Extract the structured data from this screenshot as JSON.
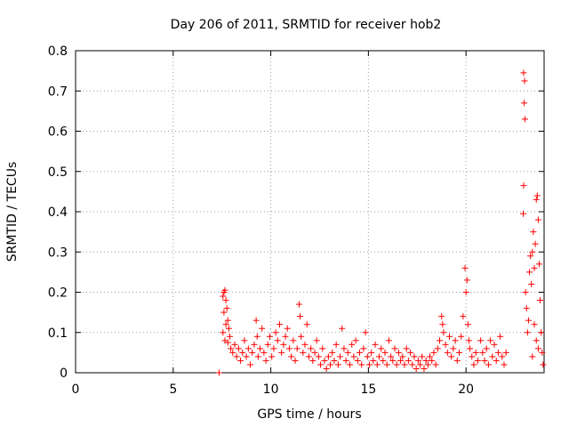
{
  "chart_data": {
    "type": "scatter",
    "title": "Day 206 of 2011, SRMTID for receiver hob2",
    "xlabel": "GPS time / hours",
    "ylabel": "SRMTID / TECUs",
    "xlim": [
      0,
      24
    ],
    "ylim": [
      0,
      0.8
    ],
    "xticks": [
      0,
      5,
      10,
      15,
      20
    ],
    "xtick_labels": [
      "0",
      "5",
      "10",
      "15",
      "20"
    ],
    "yticks": [
      0,
      0.1,
      0.2,
      0.3,
      0.4,
      0.5,
      0.6,
      0.7,
      0.8
    ],
    "ytick_labels": [
      "0",
      "0.1",
      "0.2",
      "0.3",
      "0.4",
      "0.5",
      "0.6",
      "0.7",
      "0.8"
    ],
    "grid": true,
    "marker": "+",
    "color": "#ff0000",
    "series": [
      {
        "name": "SRMTID",
        "points": [
          [
            7.35,
            0.0
          ],
          [
            7.55,
            0.19
          ],
          [
            7.6,
            0.2
          ],
          [
            7.65,
            0.205
          ],
          [
            7.7,
            0.18
          ],
          [
            7.75,
            0.16
          ],
          [
            7.8,
            0.13
          ],
          [
            7.85,
            0.11
          ],
          [
            7.9,
            0.09
          ],
          [
            7.6,
            0.15
          ],
          [
            7.7,
            0.12
          ],
          [
            7.55,
            0.1
          ],
          [
            7.65,
            0.08
          ],
          [
            7.8,
            0.075
          ],
          [
            7.95,
            0.06
          ],
          [
            8.05,
            0.05
          ],
          [
            8.15,
            0.07
          ],
          [
            8.25,
            0.04
          ],
          [
            8.35,
            0.06
          ],
          [
            8.45,
            0.03
          ],
          [
            8.55,
            0.05
          ],
          [
            8.65,
            0.08
          ],
          [
            8.75,
            0.04
          ],
          [
            8.85,
            0.06
          ],
          [
            8.95,
            0.02
          ],
          [
            9.05,
            0.05
          ],
          [
            9.15,
            0.07
          ],
          [
            9.25,
            0.13
          ],
          [
            9.3,
            0.09
          ],
          [
            9.35,
            0.04
          ],
          [
            9.45,
            0.06
          ],
          [
            9.55,
            0.11
          ],
          [
            9.65,
            0.05
          ],
          [
            9.75,
            0.03
          ],
          [
            9.85,
            0.07
          ],
          [
            9.95,
            0.09
          ],
          [
            10.05,
            0.04
          ],
          [
            10.15,
            0.06
          ],
          [
            10.25,
            0.1
          ],
          [
            10.35,
            0.08
          ],
          [
            10.45,
            0.12
          ],
          [
            10.55,
            0.05
          ],
          [
            10.65,
            0.07
          ],
          [
            10.75,
            0.09
          ],
          [
            10.85,
            0.11
          ],
          [
            10.95,
            0.06
          ],
          [
            11.05,
            0.04
          ],
          [
            11.15,
            0.08
          ],
          [
            11.25,
            0.03
          ],
          [
            11.35,
            0.06
          ],
          [
            11.45,
            0.17
          ],
          [
            11.5,
            0.14
          ],
          [
            11.55,
            0.09
          ],
          [
            11.65,
            0.05
          ],
          [
            11.75,
            0.07
          ],
          [
            11.85,
            0.12
          ],
          [
            11.95,
            0.04
          ],
          [
            12.05,
            0.06
          ],
          [
            12.15,
            0.03
          ],
          [
            12.25,
            0.05
          ],
          [
            12.35,
            0.08
          ],
          [
            12.45,
            0.04
          ],
          [
            12.55,
            0.02
          ],
          [
            12.65,
            0.06
          ],
          [
            12.75,
            0.03
          ],
          [
            12.85,
            0.01
          ],
          [
            12.95,
            0.04
          ],
          [
            13.05,
            0.02
          ],
          [
            13.15,
            0.05
          ],
          [
            13.25,
            0.03
          ],
          [
            13.35,
            0.07
          ],
          [
            13.45,
            0.02
          ],
          [
            13.55,
            0.04
          ],
          [
            13.65,
            0.11
          ],
          [
            13.75,
            0.06
          ],
          [
            13.85,
            0.03
          ],
          [
            13.95,
            0.05
          ],
          [
            14.05,
            0.02
          ],
          [
            14.15,
            0.07
          ],
          [
            14.25,
            0.04
          ],
          [
            14.35,
            0.08
          ],
          [
            14.45,
            0.03
          ],
          [
            14.55,
            0.05
          ],
          [
            14.65,
            0.02
          ],
          [
            14.75,
            0.06
          ],
          [
            14.85,
            0.1
          ],
          [
            14.95,
            0.04
          ],
          [
            15.05,
            0.02
          ],
          [
            15.15,
            0.05
          ],
          [
            15.25,
            0.03
          ],
          [
            15.35,
            0.07
          ],
          [
            15.45,
            0.02
          ],
          [
            15.55,
            0.04
          ],
          [
            15.65,
            0.06
          ],
          [
            15.75,
            0.03
          ],
          [
            15.85,
            0.05
          ],
          [
            15.95,
            0.02
          ],
          [
            16.05,
            0.08
          ],
          [
            16.15,
            0.04
          ],
          [
            16.25,
            0.03
          ],
          [
            16.35,
            0.06
          ],
          [
            16.45,
            0.02
          ],
          [
            16.55,
            0.05
          ],
          [
            16.65,
            0.03
          ],
          [
            16.75,
            0.04
          ],
          [
            16.85,
            0.02
          ],
          [
            16.95,
            0.06
          ],
          [
            17.05,
            0.03
          ],
          [
            17.15,
            0.05
          ],
          [
            17.25,
            0.02
          ],
          [
            17.35,
            0.04
          ],
          [
            17.45,
            0.01
          ],
          [
            17.55,
            0.03
          ],
          [
            17.65,
            0.02
          ],
          [
            17.75,
            0.04
          ],
          [
            17.85,
            0.01
          ],
          [
            17.95,
            0.03
          ],
          [
            18.05,
            0.02
          ],
          [
            18.15,
            0.04
          ],
          [
            18.25,
            0.03
          ],
          [
            18.35,
            0.05
          ],
          [
            18.45,
            0.02
          ],
          [
            18.55,
            0.06
          ],
          [
            18.65,
            0.08
          ],
          [
            18.75,
            0.14
          ],
          [
            18.8,
            0.12
          ],
          [
            18.85,
            0.1
          ],
          [
            18.95,
            0.07
          ],
          [
            19.05,
            0.05
          ],
          [
            19.15,
            0.09
          ],
          [
            19.25,
            0.04
          ],
          [
            19.35,
            0.06
          ],
          [
            19.45,
            0.08
          ],
          [
            19.55,
            0.03
          ],
          [
            19.65,
            0.05
          ],
          [
            19.75,
            0.09
          ],
          [
            19.85,
            0.14
          ],
          [
            19.95,
            0.26
          ],
          [
            20.0,
            0.2
          ],
          [
            20.05,
            0.23
          ],
          [
            20.1,
            0.12
          ],
          [
            20.15,
            0.08
          ],
          [
            20.2,
            0.06
          ],
          [
            20.3,
            0.04
          ],
          [
            20.4,
            0.02
          ],
          [
            20.5,
            0.05
          ],
          [
            20.6,
            0.03
          ],
          [
            20.75,
            0.08
          ],
          [
            20.85,
            0.05
          ],
          [
            20.95,
            0.03
          ],
          [
            21.05,
            0.06
          ],
          [
            21.15,
            0.02
          ],
          [
            21.25,
            0.08
          ],
          [
            21.35,
            0.04
          ],
          [
            21.45,
            0.07
          ],
          [
            21.55,
            0.03
          ],
          [
            21.65,
            0.05
          ],
          [
            21.75,
            0.09
          ],
          [
            21.85,
            0.04
          ],
          [
            21.95,
            0.02
          ],
          [
            22.05,
            0.05
          ],
          [
            22.95,
            0.745
          ],
          [
            23.0,
            0.725
          ],
          [
            22.98,
            0.67
          ],
          [
            23.02,
            0.63
          ],
          [
            22.95,
            0.465
          ],
          [
            22.93,
            0.395
          ],
          [
            23.05,
            0.2
          ],
          [
            23.1,
            0.16
          ],
          [
            23.15,
            0.1
          ],
          [
            23.2,
            0.13
          ],
          [
            23.25,
            0.25
          ],
          [
            23.3,
            0.29
          ],
          [
            23.35,
            0.22
          ],
          [
            23.4,
            0.3
          ],
          [
            23.45,
            0.35
          ],
          [
            23.5,
            0.26
          ],
          [
            23.55,
            0.32
          ],
          [
            23.6,
            0.43
          ],
          [
            23.65,
            0.44
          ],
          [
            23.7,
            0.38
          ],
          [
            23.75,
            0.27
          ],
          [
            23.8,
            0.18
          ],
          [
            23.85,
            0.1
          ],
          [
            23.9,
            0.05
          ],
          [
            23.95,
            0.02
          ],
          [
            23.5,
            0.12
          ],
          [
            23.6,
            0.08
          ],
          [
            23.7,
            0.06
          ],
          [
            23.4,
            0.04
          ]
        ]
      }
    ]
  }
}
